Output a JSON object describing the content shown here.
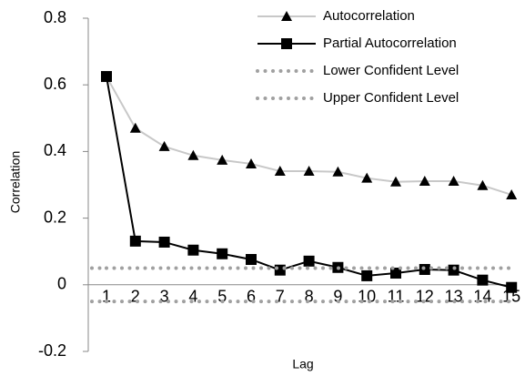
{
  "chart_data": {
    "type": "line",
    "xlabel": "Lag",
    "ylabel": "Correlation",
    "categories": [
      1,
      2,
      3,
      4,
      5,
      6,
      7,
      8,
      9,
      10,
      11,
      12,
      13,
      14,
      15
    ],
    "ylim": [
      -0.2,
      0.8
    ],
    "yticks": [
      -0.2,
      0,
      0.2,
      0.4,
      0.6,
      0.8
    ],
    "legend": "top-right",
    "series": [
      {
        "name": "Autocorrelation",
        "color": "#c8c8c8",
        "marker": "triangle",
        "dash": "solid",
        "values": [
          0.625,
          0.47,
          0.415,
          0.388,
          0.374,
          0.363,
          0.341,
          0.341,
          0.339,
          0.32,
          0.309,
          0.311,
          0.311,
          0.298,
          0.27
        ]
      },
      {
        "name": "Partial Autocorrelation",
        "color": "#000000",
        "marker": "square",
        "dash": "solid",
        "values": [
          0.625,
          0.131,
          0.128,
          0.104,
          0.093,
          0.076,
          0.044,
          0.071,
          0.052,
          0.027,
          0.035,
          0.046,
          0.044,
          0.014,
          -0.008
        ]
      },
      {
        "name": "Lower Confident Level",
        "color": "#a0a0a0",
        "marker": "none",
        "dash": "dotted",
        "values": [
          -0.05,
          -0.05,
          -0.05,
          -0.05,
          -0.05,
          -0.05,
          -0.05,
          -0.05,
          -0.05,
          -0.05,
          -0.05,
          -0.05,
          -0.05,
          -0.05,
          -0.05
        ]
      },
      {
        "name": "Upper Confident Level",
        "color": "#a0a0a0",
        "marker": "none",
        "dash": "dotted",
        "values": [
          0.05,
          0.05,
          0.05,
          0.05,
          0.05,
          0.05,
          0.05,
          0.05,
          0.05,
          0.05,
          0.05,
          0.05,
          0.05,
          0.05,
          0.05
        ]
      }
    ]
  }
}
